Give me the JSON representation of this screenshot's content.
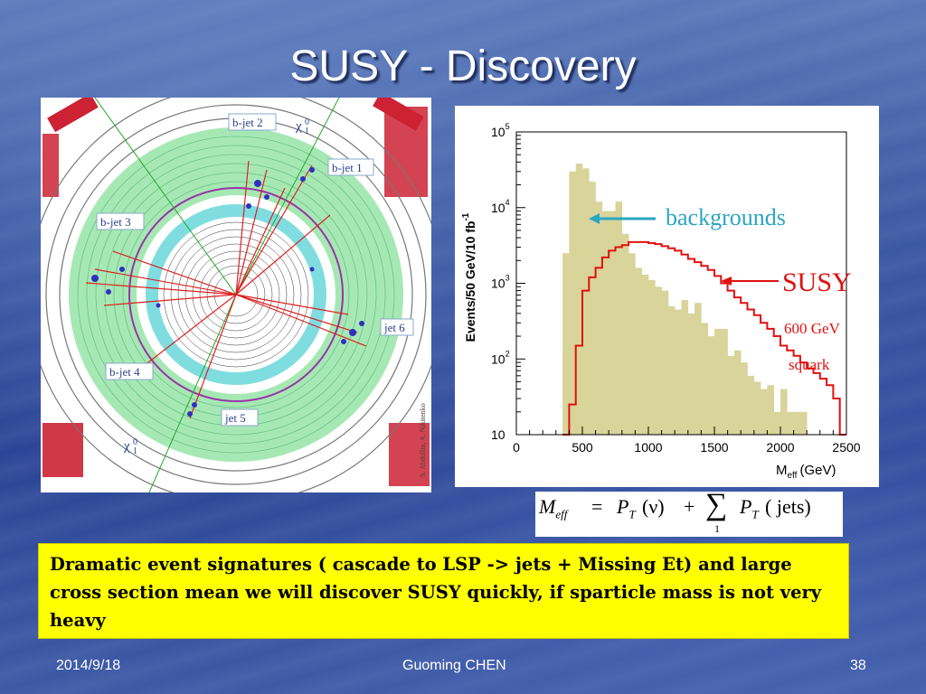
{
  "slide": {
    "title": "SUSY - Discovery",
    "footer": {
      "date": "2014/9/18",
      "author": "Guoming CHEN",
      "page": "38"
    },
    "callout_text": "Dramatic event signatures ( cascade to LSP -> jets + Missing Et) and large cross section mean we will discover SUSY quickly, if sparticle mass is not very heavy",
    "formula": {
      "m": "M",
      "eff": "eff",
      "eq": "=",
      "pt": "P",
      "t": "T",
      "nu": "(ν)",
      "plus": "+",
      "sum": "∑",
      "lower": "1",
      "jets": "( jets)"
    },
    "event_display": {
      "labels": {
        "bjet2": "b-jet 2",
        "bjet1": "b-jet 1",
        "bjet3": "b-jet 3",
        "bjet4": "b-jet 4",
        "jet5": "jet 5",
        "jet6": "jet 6",
        "chi_top": "χ",
        "chi_bot": "χ",
        "chi_sup": "0",
        "chi_sub": "1",
        "credit": "S. Abdullin, A. Nikitenko"
      },
      "colors": {
        "ring": "#55bbaa",
        "track": "#dd2020",
        "hit": "#3030c0",
        "calo": "#a6e8b4",
        "tracker": "#7fdde0",
        "muon": "#cc2233"
      }
    },
    "annotations": {
      "backgrounds": "backgrounds",
      "susy": "SUSY",
      "mass": "600 GeV",
      "squark": "squark"
    },
    "colors": {
      "backgrounds": "#2aa6c0",
      "susy": "#e01010",
      "fill": "#d8d49a"
    }
  },
  "chart_data": {
    "type": "bar",
    "ylabel": "Events/50 GeV/10 fb",
    "ylabel_sup": "-1",
    "xlabel": "M",
    "xlabel_sub": "eff",
    "xlabel_unit": "(GeV)",
    "xlim": [
      0,
      2500
    ],
    "ylim": [
      10,
      100000
    ],
    "yscale": "log",
    "xticks": [
      0,
      500,
      1000,
      1500,
      2000,
      2500
    ],
    "xtick_labels": [
      "0",
      "500",
      "1000",
      "1500",
      "2000",
      "2500"
    ],
    "yticks": [
      10,
      100,
      1000,
      10000,
      100000
    ],
    "ytick_labels": [
      {
        "base": "10",
        "exp": ""
      },
      {
        "base": "10",
        "exp": "2"
      },
      {
        "base": "10",
        "exp": "3"
      },
      {
        "base": "10",
        "exp": "4"
      },
      {
        "base": "10",
        "exp": "5"
      }
    ],
    "bin_width": 50,
    "series": [
      {
        "name": "backgrounds",
        "style": "filled",
        "x_start": [
          350,
          400,
          450,
          500,
          550,
          600,
          650,
          700,
          750,
          800,
          850,
          900,
          950,
          1000,
          1050,
          1100,
          1150,
          1200,
          1250,
          1300,
          1350,
          1400,
          1450,
          1500,
          1550,
          1600,
          1650,
          1700,
          1750,
          1800,
          1850,
          1900,
          1950,
          2000,
          2050,
          2100,
          2150
        ],
        "values": [
          2500,
          30000,
          38000,
          33000,
          22000,
          12000,
          9000,
          9000,
          12000,
          4500,
          2500,
          1600,
          1300,
          1100,
          900,
          800,
          500,
          450,
          600,
          400,
          550,
          300,
          200,
          250,
          250,
          110,
          130,
          90,
          60,
          50,
          40,
          45,
          20,
          40,
          20,
          20,
          20
        ]
      },
      {
        "name": "SUSY",
        "style": "step",
        "x_start": [
          350,
          400,
          450,
          500,
          550,
          600,
          650,
          700,
          750,
          800,
          850,
          900,
          950,
          1000,
          1050,
          1100,
          1150,
          1200,
          1250,
          1300,
          1350,
          1400,
          1450,
          1500,
          1550,
          1600,
          1650,
          1700,
          1750,
          1800,
          1850,
          1900,
          1950,
          2000,
          2050,
          2100,
          2150,
          2200,
          2250,
          2300,
          2350,
          2400,
          2450
        ],
        "values": [
          10,
          25,
          150,
          800,
          1200,
          1600,
          2200,
          2700,
          3000,
          3200,
          3500,
          3500,
          3500,
          3400,
          3300,
          3100,
          2900,
          2700,
          2400,
          2100,
          1900,
          1700,
          1500,
          1250,
          1000,
          800,
          650,
          550,
          450,
          380,
          300,
          250,
          200,
          150,
          130,
          110,
          90,
          75,
          65,
          55,
          45,
          30,
          10
        ]
      }
    ]
  }
}
